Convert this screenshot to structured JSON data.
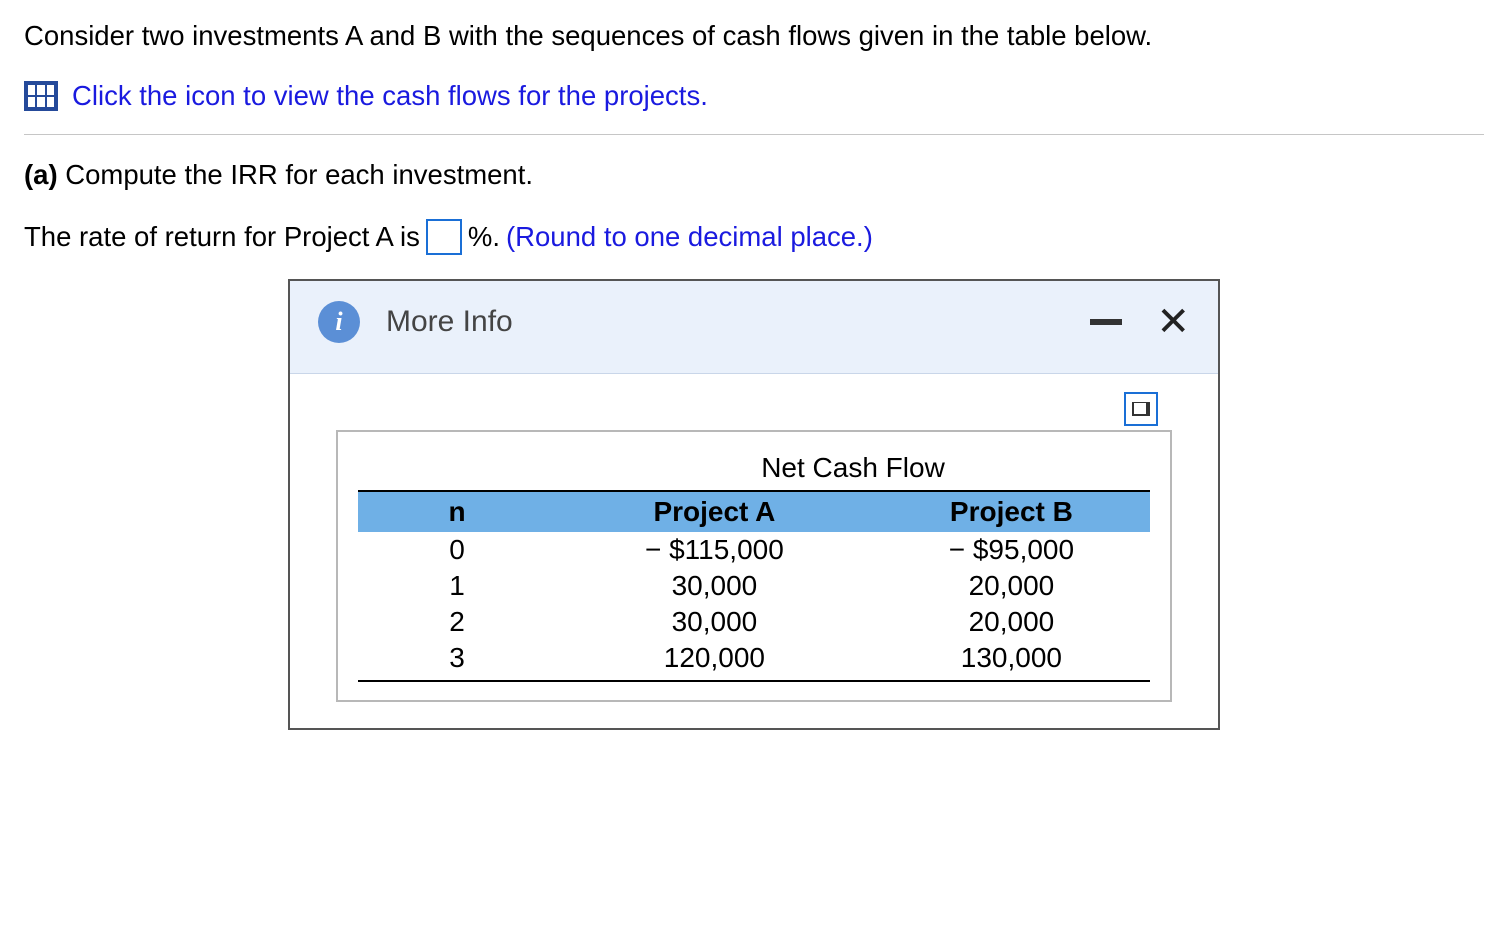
{
  "problem": {
    "intro": "Consider two investments A and B with the sequences of cash flows given in the table below.",
    "link_text": "Click the icon to view the cash flows for the projects.",
    "part_label": "(a)",
    "part_text": " Compute the IRR for each investment.",
    "answer_prefix": "The rate of return for Project A is ",
    "answer_suffix": "%. ",
    "hint": "(Round to one decimal place.)",
    "input_value": ""
  },
  "modal": {
    "title": "More Info",
    "table": {
      "type": "table",
      "super_header": "Net Cash Flow",
      "columns": [
        "n",
        "Project A",
        "Project B"
      ],
      "rows": [
        [
          "0",
          "− $115,000",
          "− $95,000"
        ],
        [
          "1",
          "30,000",
          "20,000"
        ],
        [
          "2",
          "30,000",
          "20,000"
        ],
        [
          "3",
          "120,000",
          "130,000"
        ]
      ],
      "header_bg": "#6fb0e6",
      "border_color": "#000000",
      "font_size_pt": 21,
      "column_align": [
        "center",
        "center",
        "center"
      ]
    }
  },
  "colors": {
    "link": "#1a1adf",
    "modal_header_bg": "#eaf1fb",
    "info_icon_bg": "#5b8fd6",
    "input_border": "#1a6fd6"
  }
}
